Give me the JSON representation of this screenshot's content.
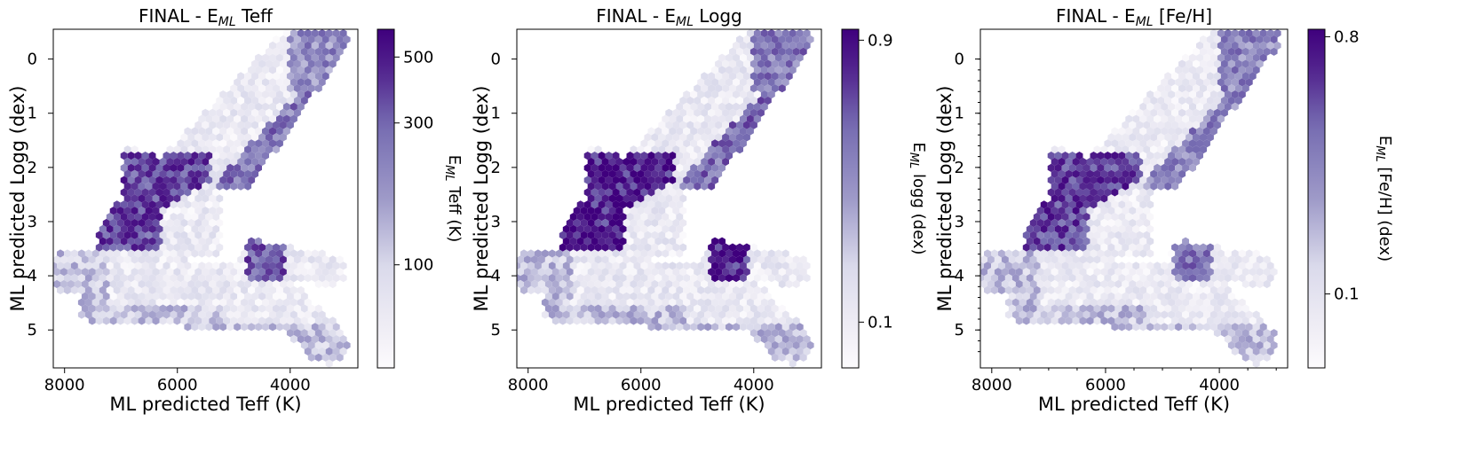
{
  "chart_data": [
    {
      "type": "heatmap",
      "title": "FINAL - E_ML Teff",
      "title_parts": {
        "prefix": "FINAL - E",
        "sub": "ML",
        "suffix": " Teff"
      },
      "xlabel": "ML predicted Teff (K)",
      "ylabel": "ML predicted Logg (dex)",
      "colorbar_label": "E_ML Teff (K)",
      "colorbar_parts": {
        "base": "E",
        "sub": "ML",
        "rest": " Teff (K)"
      },
      "colorbar_scale": "log",
      "colorbar_range": [
        45,
        620
      ],
      "colorbar_ticks": [
        100,
        300,
        500
      ],
      "colorbar_tick_labels": [
        "100",
        "300",
        "500"
      ],
      "xlim": [
        8200,
        2800
      ],
      "ylim": [
        5.7,
        -0.55
      ],
      "x_ticks": [
        8000,
        6000,
        4000
      ],
      "x_tick_labels": [
        "8000",
        "6000",
        "4000"
      ],
      "y_ticks": [
        0,
        1,
        2,
        3,
        4,
        5
      ],
      "y_tick_labels": [
        "0",
        "1",
        "2",
        "3",
        "4",
        "5"
      ],
      "x_minor_ticks": false,
      "z": {
        "base": 75,
        "dwarf_edge": 120,
        "giant_hi_zone": 380,
        "rgb_edge": 260,
        "cool_clump": 330,
        "tip_high": 220
      }
    },
    {
      "type": "heatmap",
      "title": "FINAL - E_ML Logg",
      "title_parts": {
        "prefix": "FINAL - E",
        "sub": "ML",
        "suffix": " Logg"
      },
      "xlabel": "ML predicted Teff (K)",
      "ylabel": "ML predicted Logg (dex)",
      "colorbar_label": "E_ML logg (dex)",
      "colorbar_parts": {
        "base": "E",
        "sub": "ML",
        "rest": " logg (dex)"
      },
      "colorbar_scale": "log",
      "colorbar_range": [
        0.07,
        0.98
      ],
      "colorbar_ticks": [
        0.1,
        0.9
      ],
      "colorbar_tick_labels": [
        "0.1",
        "0.9"
      ],
      "xlim": [
        8200,
        2800
      ],
      "ylim": [
        5.7,
        -0.55
      ],
      "x_ticks": [
        8000,
        6000,
        4000
      ],
      "x_tick_labels": [
        "8000",
        "6000",
        "4000"
      ],
      "y_ticks": [
        0,
        1,
        2,
        3,
        4,
        5
      ],
      "y_tick_labels": [
        "0",
        "1",
        "2",
        "3",
        "4",
        "5"
      ],
      "x_minor_ticks": false,
      "z": {
        "base": 0.12,
        "dwarf_edge": 0.2,
        "giant_hi_zone": 0.85,
        "rgb_edge": 0.45,
        "cool_clump": 0.75,
        "tip_high": 0.4
      }
    },
    {
      "type": "heatmap",
      "title": "FINAL - E_ML [Fe/H]",
      "title_parts": {
        "prefix": "FINAL - E",
        "sub": "ML",
        "suffix": " [Fe/H]"
      },
      "xlabel": "ML predicted Teff (K)",
      "ylabel": "ML predicted Logg (dex)",
      "colorbar_label": "E_ML [Fe/H] (dex)",
      "colorbar_parts": {
        "base": "E",
        "sub": "ML",
        "rest": " [Fe/H] (dex)"
      },
      "colorbar_scale": "log",
      "colorbar_range": [
        0.055,
        0.85
      ],
      "colorbar_ticks": [
        0.1,
        0.8
      ],
      "colorbar_tick_labels": [
        "0.1",
        "0.8"
      ],
      "xlim": [
        8200,
        2800
      ],
      "ylim": [
        5.7,
        -0.55
      ],
      "x_ticks": [
        8000,
        6000,
        4000
      ],
      "x_tick_labels": [
        "8000",
        "6000",
        "4000"
      ],
      "y_ticks": [
        0,
        1,
        2,
        3,
        4,
        5
      ],
      "y_tick_labels": [
        "0",
        "1",
        "2",
        "3",
        "4",
        "5"
      ],
      "x_minor_ticks": true,
      "z": {
        "base": 0.09,
        "dwarf_edge": 0.16,
        "giant_hi_zone": 0.55,
        "rgb_edge": 0.3,
        "cool_clump": 0.35,
        "tip_high": 0.3
      }
    }
  ],
  "colors": {
    "low": "#fcfbfd",
    "mid": "#9e9ac8",
    "high": "#3f007d"
  }
}
